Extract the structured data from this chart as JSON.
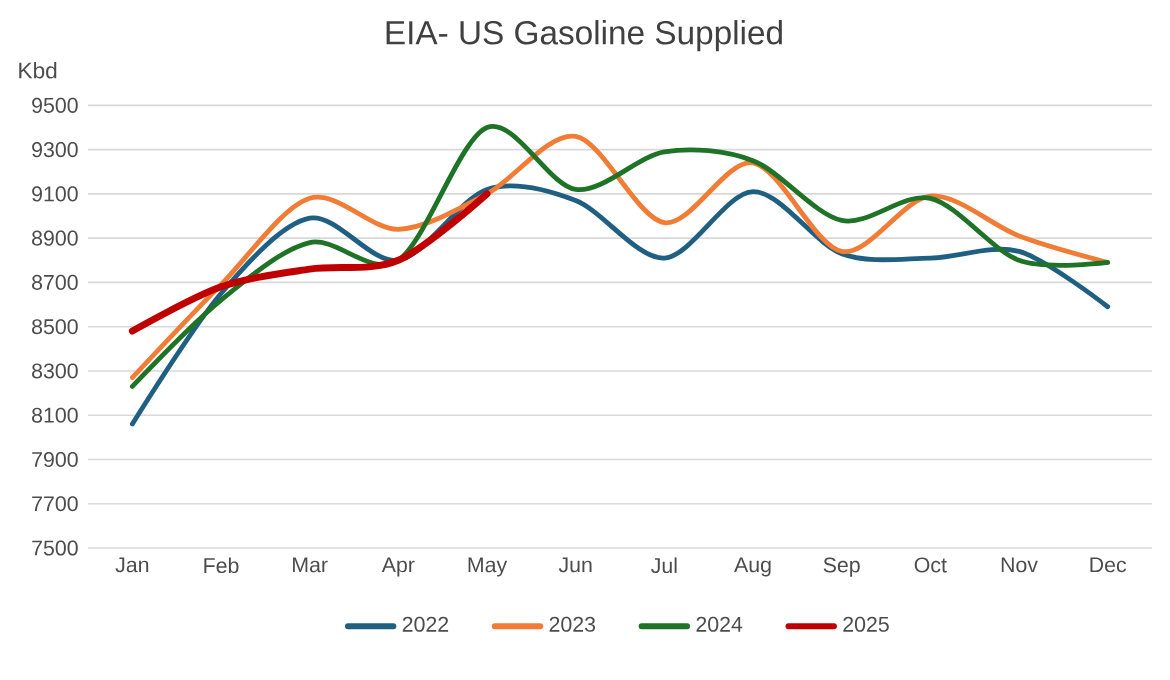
{
  "chart_data": {
    "type": "line",
    "title": "EIA- US Gasoline Supplied",
    "ylabel": "Kbd",
    "categories": [
      "Jan",
      "Feb",
      "Mar",
      "Apr",
      "May",
      "Jun",
      "Jul",
      "Aug",
      "Sep",
      "Oct",
      "Nov",
      "Dec"
    ],
    "series": [
      {
        "name": "2022",
        "color": "#1f5f82",
        "values": [
          8060,
          8650,
          8990,
          8800,
          9120,
          9070,
          8810,
          9110,
          8830,
          8810,
          8840,
          8590
        ]
      },
      {
        "name": "2023",
        "color": "#f07c35",
        "values": [
          8270,
          8690,
          9080,
          8940,
          9100,
          9360,
          8970,
          9240,
          8840,
          9090,
          8910,
          8790
        ]
      },
      {
        "name": "2024",
        "color": "#1e7326",
        "values": [
          8230,
          8620,
          8880,
          8800,
          9400,
          9120,
          9290,
          9250,
          8980,
          9080,
          8800,
          8790
        ]
      },
      {
        "name": "2025",
        "color": "#c00000",
        "values": [
          8480,
          8680,
          8760,
          8800,
          9100,
          null,
          null,
          null,
          null,
          null,
          null,
          null
        ]
      }
    ],
    "ylim": [
      7500,
      9500
    ],
    "yticks": [
      7500,
      7700,
      7900,
      8100,
      8300,
      8500,
      8700,
      8900,
      9100,
      9300,
      9500
    ],
    "grid": "y",
    "legend": "bottom"
  }
}
